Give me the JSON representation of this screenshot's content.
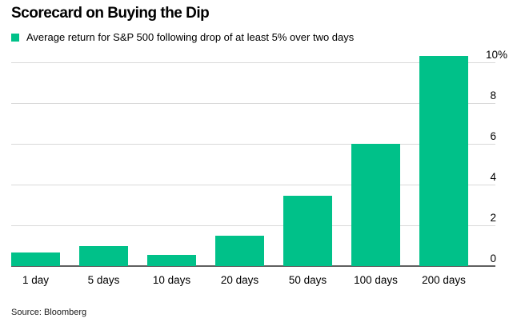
{
  "header": {
    "title": "Scorecard on Buying the Dip",
    "legend": {
      "swatch_color": "#00C189",
      "label": "Average return for S&P 500 following drop of at least 5% over two days"
    }
  },
  "footer": {
    "source": "Source: Bloomberg"
  },
  "chart_data": {
    "type": "bar",
    "title": "Scorecard on Buying the Dip",
    "series_name": "Average return for S&P 500 following drop of at least 5% over two days",
    "categories": [
      "1 day",
      "5 days",
      "10 days",
      "20 days",
      "50 days",
      "100 days",
      "200 days"
    ],
    "values": [
      0.65,
      1.0,
      0.55,
      1.5,
      3.45,
      6.0,
      10.3
    ],
    "unit": "%",
    "ylim": [
      0,
      10
    ],
    "yticks": [
      {
        "value": 0,
        "label": "0"
      },
      {
        "value": 2,
        "label": "2"
      },
      {
        "value": 4,
        "label": "4"
      },
      {
        "value": 6,
        "label": "6"
      },
      {
        "value": 8,
        "label": "8"
      },
      {
        "value": 10,
        "label": "10%"
      }
    ],
    "bar_color": "#00C189",
    "gridline_color": "#d9d9d9",
    "axis_line_color": "#5f5f5f",
    "grid": true,
    "y_axis_side": "right",
    "legend_position": "top-left",
    "source": "Source: Bloomberg"
  }
}
